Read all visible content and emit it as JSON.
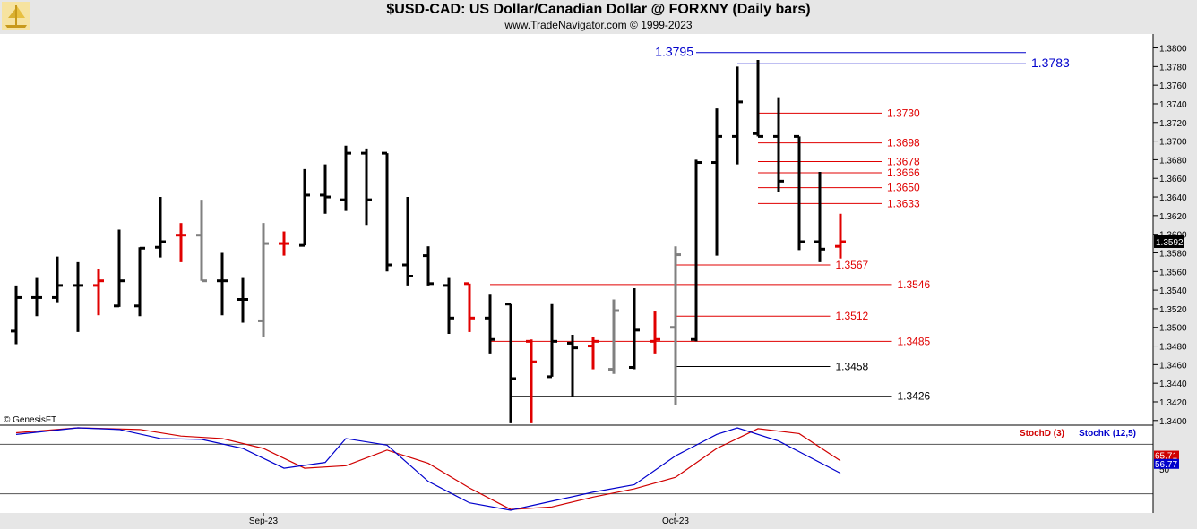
{
  "header": {
    "title": "$USD-CAD:  US Dollar/Canadian Dollar @ FORXNY  (Daily bars)",
    "subtitle": "www.TradeNavigator.com © 1999-2023"
  },
  "colors": {
    "bar_black": "#000000",
    "bar_red": "#e00000",
    "bar_gray": "#808080",
    "level_red": "#e00000",
    "level_blue": "#0000cc",
    "stoch_d": "#d00000",
    "stoch_k": "#0000cc",
    "last_price_bg": "#000000",
    "background": "#ffffff",
    "panel_bg": "#e6e6e6"
  },
  "chart_data": [
    {
      "type": "ohlc",
      "title": "$USD-CAD:  US Dollar/Canadian Dollar @ FORXNY  (Daily bars)",
      "credit": "© GenesisFT",
      "ylim": [
        1.3395,
        1.3813
      ],
      "y_ticks": [
        "1.3400",
        "1.3420",
        "1.3440",
        "1.3460",
        "1.3480",
        "1.3500",
        "1.3520",
        "1.3540",
        "1.3560",
        "1.3580",
        "1.3600",
        "1.3620",
        "1.3640",
        "1.3660",
        "1.3680",
        "1.3700",
        "1.3720",
        "1.3740",
        "1.3760",
        "1.3780",
        "1.3800"
      ],
      "x_labels": [
        {
          "label": "Sep-23",
          "index": 12
        },
        {
          "label": "Oct-23",
          "index": 32
        }
      ],
      "last_price": "1.3592",
      "bars": [
        {
          "o": 1.3496,
          "h": 1.3545,
          "l": 1.3482,
          "c": 1.3532,
          "color": "black"
        },
        {
          "o": 1.3532,
          "h": 1.3553,
          "l": 1.3512,
          "c": 1.3532,
          "color": "black"
        },
        {
          "o": 1.3532,
          "h": 1.3576,
          "l": 1.3527,
          "c": 1.3545,
          "color": "black"
        },
        {
          "o": 1.3545,
          "h": 1.357,
          "l": 1.3495,
          "c": 1.3545,
          "color": "black"
        },
        {
          "o": 1.3545,
          "h": 1.3563,
          "l": 1.3513,
          "c": 1.355,
          "color": "red"
        },
        {
          "o": 1.3523,
          "h": 1.3605,
          "l": 1.3522,
          "c": 1.355,
          "color": "black"
        },
        {
          "o": 1.3523,
          "h": 1.3586,
          "l": 1.3512,
          "c": 1.3585,
          "color": "black"
        },
        {
          "o": 1.3586,
          "h": 1.364,
          "l": 1.3575,
          "c": 1.3592,
          "color": "black"
        },
        {
          "o": 1.3599,
          "h": 1.3612,
          "l": 1.357,
          "c": 1.3599,
          "color": "red"
        },
        {
          "o": 1.3599,
          "h": 1.3637,
          "l": 1.355,
          "c": 1.355,
          "color": "gray"
        },
        {
          "o": 1.355,
          "h": 1.358,
          "l": 1.3513,
          "c": 1.355,
          "color": "black"
        },
        {
          "o": 1.353,
          "h": 1.3553,
          "l": 1.3505,
          "c": 1.353,
          "color": "black"
        },
        {
          "o": 1.3507,
          "h": 1.3612,
          "l": 1.349,
          "c": 1.359,
          "color": "gray"
        },
        {
          "o": 1.359,
          "h": 1.3603,
          "l": 1.3577,
          "c": 1.359,
          "color": "red"
        },
        {
          "o": 1.3588,
          "h": 1.367,
          "l": 1.3588,
          "c": 1.3642,
          "color": "black"
        },
        {
          "o": 1.3642,
          "h": 1.3675,
          "l": 1.3622,
          "c": 1.364,
          "color": "black"
        },
        {
          "o": 1.3637,
          "h": 1.3695,
          "l": 1.3625,
          "c": 1.3687,
          "color": "black"
        },
        {
          "o": 1.3687,
          "h": 1.3692,
          "l": 1.361,
          "c": 1.3637,
          "color": "black"
        },
        {
          "o": 1.3687,
          "h": 1.3687,
          "l": 1.356,
          "c": 1.3567,
          "color": "black"
        },
        {
          "o": 1.3567,
          "h": 1.364,
          "l": 1.3545,
          "c": 1.3555,
          "color": "black"
        },
        {
          "o": 1.3577,
          "h": 1.3587,
          "l": 1.3545,
          "c": 1.3547,
          "color": "black"
        },
        {
          "o": 1.3545,
          "h": 1.3553,
          "l": 1.3493,
          "c": 1.351,
          "color": "black"
        },
        {
          "o": 1.3547,
          "h": 1.3547,
          "l": 1.3495,
          "c": 1.351,
          "color": "red"
        },
        {
          "o": 1.351,
          "h": 1.3535,
          "l": 1.3472,
          "c": 1.3487,
          "color": "black"
        },
        {
          "o": 1.3525,
          "h": 1.3525,
          "l": 1.3397,
          "c": 1.3445,
          "color": "black"
        },
        {
          "o": 1.3485,
          "h": 1.3487,
          "l": 1.3397,
          "c": 1.3463,
          "color": "red"
        },
        {
          "o": 1.3447,
          "h": 1.3525,
          "l": 1.3447,
          "c": 1.3485,
          "color": "black"
        },
        {
          "o": 1.3483,
          "h": 1.3492,
          "l": 1.3425,
          "c": 1.3478,
          "color": "black"
        },
        {
          "o": 1.348,
          "h": 1.349,
          "l": 1.3455,
          "c": 1.3485,
          "color": "red"
        },
        {
          "o": 1.3455,
          "h": 1.353,
          "l": 1.345,
          "c": 1.3518,
          "color": "gray"
        },
        {
          "o": 1.3457,
          "h": 1.3542,
          "l": 1.3455,
          "c": 1.3497,
          "color": "black"
        },
        {
          "o": 1.3485,
          "h": 1.3517,
          "l": 1.3472,
          "c": 1.3487,
          "color": "red"
        },
        {
          "o": 1.35,
          "h": 1.3587,
          "l": 1.3417,
          "c": 1.3578,
          "color": "gray"
        },
        {
          "o": 1.3487,
          "h": 1.368,
          "l": 1.3485,
          "c": 1.3677,
          "color": "black"
        },
        {
          "o": 1.3677,
          "h": 1.3735,
          "l": 1.3577,
          "c": 1.3705,
          "color": "black"
        },
        {
          "o": 1.3705,
          "h": 1.378,
          "l": 1.3675,
          "c": 1.3742,
          "color": "black"
        },
        {
          "o": 1.3708,
          "h": 1.3787,
          "l": 1.3705,
          "c": 1.3705,
          "color": "black"
        },
        {
          "o": 1.3705,
          "h": 1.3747,
          "l": 1.3645,
          "c": 1.3657,
          "color": "black"
        },
        {
          "o": 1.3705,
          "h": 1.3705,
          "l": 1.3583,
          "c": 1.3592,
          "color": "black"
        },
        {
          "o": 1.3592,
          "h": 1.3667,
          "l": 1.357,
          "c": 1.3584,
          "color": "black"
        },
        {
          "o": 1.3587,
          "h": 1.3622,
          "l": 1.3574,
          "c": 1.3592,
          "color": "red"
        }
      ],
      "levels": [
        {
          "label": "1.3795",
          "price": 1.3795,
          "color": "blue",
          "from": 33,
          "to": 49,
          "label_pos": "left"
        },
        {
          "label": "1.3783",
          "price": 1.3783,
          "color": "blue",
          "from": 35,
          "to": 49,
          "label_pos": "right"
        },
        {
          "label": "1.3730",
          "price": 1.373,
          "color": "red",
          "from": 36,
          "to": 42,
          "label_pos": "right"
        },
        {
          "label": "1.3698",
          "price": 1.3698,
          "color": "red",
          "from": 36,
          "to": 42,
          "label_pos": "right"
        },
        {
          "label": "1.3678",
          "price": 1.3678,
          "color": "red",
          "from": 36,
          "to": 42,
          "label_pos": "right"
        },
        {
          "label": "1.3666",
          "price": 1.3666,
          "color": "red",
          "from": 36,
          "to": 42,
          "label_pos": "right"
        },
        {
          "label": "1.3650",
          "price": 1.365,
          "color": "red",
          "from": 36,
          "to": 42,
          "label_pos": "right"
        },
        {
          "label": "1.3633",
          "price": 1.3633,
          "color": "red",
          "from": 36,
          "to": 42,
          "label_pos": "right"
        },
        {
          "label": "1.3567",
          "price": 1.3567,
          "color": "red",
          "from": 32,
          "to": 39.5,
          "label_pos": "right"
        },
        {
          "label": "1.3546",
          "price": 1.3546,
          "color": "red",
          "from": 23,
          "to": 42.5,
          "label_pos": "right"
        },
        {
          "label": "1.3512",
          "price": 1.3512,
          "color": "red",
          "from": 32,
          "to": 39.5,
          "label_pos": "right"
        },
        {
          "label": "1.3485",
          "price": 1.3485,
          "color": "red",
          "from": 23,
          "to": 42.5,
          "label_pos": "right"
        },
        {
          "label": "1.3458",
          "price": 1.3458,
          "color": "black",
          "from": 32,
          "to": 39.5,
          "label_pos": "right"
        },
        {
          "label": "1.3426",
          "price": 1.3426,
          "color": "black",
          "from": 24,
          "to": 42.5,
          "label_pos": "right"
        }
      ]
    },
    {
      "type": "line",
      "title": "",
      "legend": [
        {
          "name": "StochD (3)",
          "color": "red"
        },
        {
          "name": "StochK (12,5)",
          "color": "blue"
        }
      ],
      "ylim": [
        0,
        100
      ],
      "reference_lines": [
        80,
        20
      ],
      "tick_label": "50",
      "current_values": {
        "d": "65.71",
        "k": "56.77"
      },
      "series": [
        {
          "name": "StochD (3)",
          "color": "red",
          "points": [
            [
              0,
              94
            ],
            [
              3,
              100
            ],
            [
              6,
              98
            ],
            [
              8,
              90
            ],
            [
              10,
              87
            ],
            [
              12,
              75
            ],
            [
              14,
              51
            ],
            [
              16,
              54
            ],
            [
              18,
              73
            ],
            [
              20,
              57
            ],
            [
              22,
              27
            ],
            [
              24,
              1
            ],
            [
              26,
              4
            ],
            [
              28,
              16
            ],
            [
              30,
              26
            ],
            [
              32,
              40
            ],
            [
              34,
              75
            ],
            [
              36,
              99
            ],
            [
              38,
              93
            ],
            [
              40,
              60
            ]
          ]
        },
        {
          "name": "StochK (12,5)",
          "color": "blue",
          "points": [
            [
              0,
              92
            ],
            [
              3,
              100
            ],
            [
              5,
              98
            ],
            [
              7,
              87
            ],
            [
              9,
              86
            ],
            [
              11,
              75
            ],
            [
              13,
              51
            ],
            [
              15,
              58
            ],
            [
              16,
              87
            ],
            [
              18,
              79
            ],
            [
              20,
              35
            ],
            [
              22,
              9
            ],
            [
              24,
              0
            ],
            [
              26,
              11
            ],
            [
              28,
              22
            ],
            [
              30,
              31
            ],
            [
              32,
              66
            ],
            [
              34,
              92
            ],
            [
              35,
              100
            ],
            [
              37,
              84
            ],
            [
              40,
              45
            ]
          ]
        }
      ]
    }
  ]
}
